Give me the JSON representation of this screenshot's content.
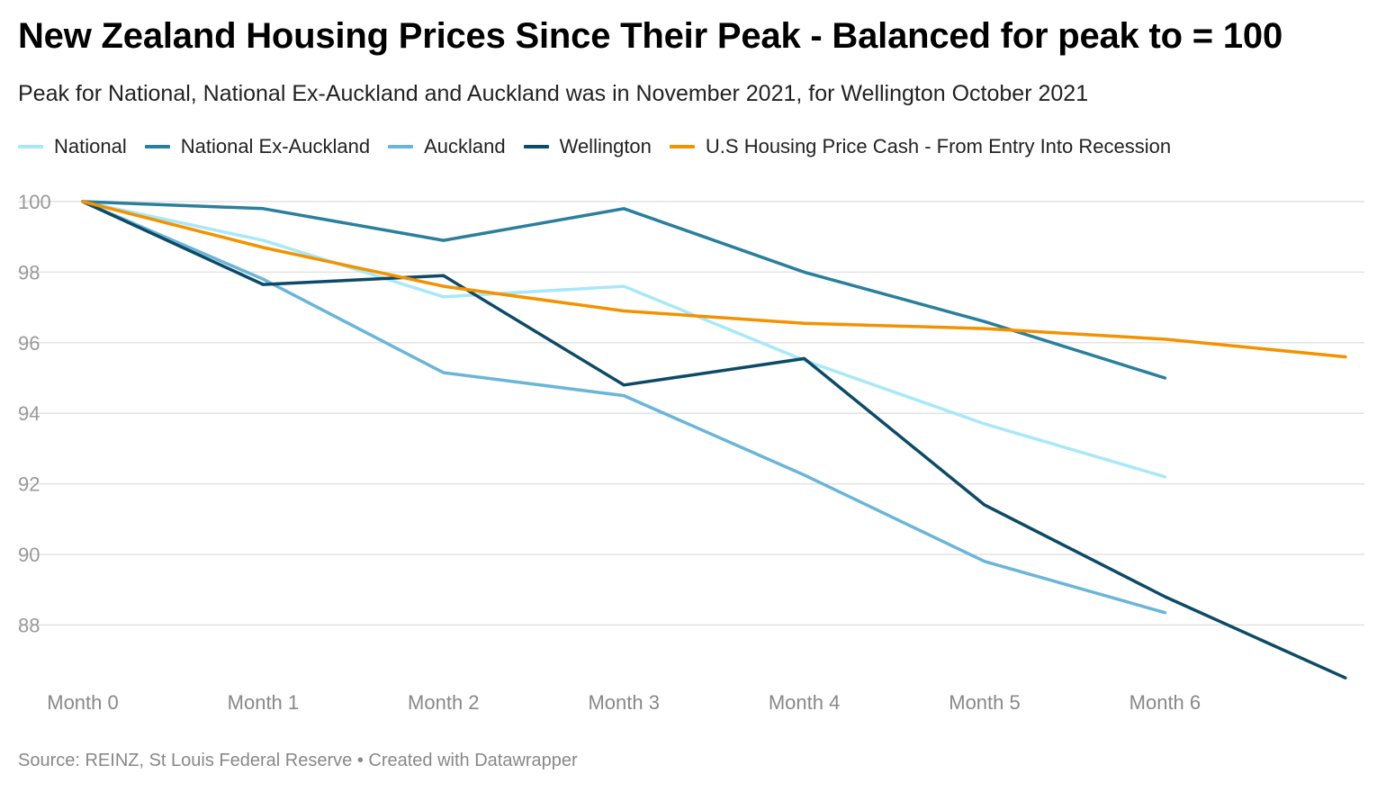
{
  "chart_data": {
    "type": "line",
    "title": "New Zealand Housing Prices Since Their Peak - Balanced for peak to = 100",
    "subtitle": "Peak for National, National Ex-Auckland and Auckland was in November 2021, for Wellington October 2021",
    "x": [
      "Month 0",
      "Month 1",
      "Month 2",
      "Month 3",
      "Month 4",
      "Month 5",
      "Month 6",
      ""
    ],
    "ylim": [
      86.5,
      100
    ],
    "yticks": [
      100,
      98,
      96,
      94,
      92,
      90,
      88
    ],
    "grid": true,
    "legend_position": "top",
    "series": [
      {
        "name": "National",
        "color": "#a8e8f8",
        "values": [
          100,
          98.9,
          97.3,
          97.6,
          95.5,
          93.7,
          92.2,
          null
        ]
      },
      {
        "name": "National Ex-Auckland",
        "color": "#2a7f9c",
        "values": [
          100,
          99.8,
          98.9,
          99.8,
          98.0,
          96.6,
          95.0,
          null
        ]
      },
      {
        "name": "Auckland",
        "color": "#6ab5d8",
        "values": [
          100,
          97.8,
          95.15,
          94.5,
          92.25,
          89.8,
          88.35,
          null
        ]
      },
      {
        "name": "Wellington",
        "color": "#0d4a65",
        "values": [
          100,
          97.65,
          97.9,
          94.8,
          95.55,
          91.4,
          88.8,
          86.5
        ]
      },
      {
        "name": "U.S Housing Price Cash - From Entry Into Recession",
        "color": "#f39200",
        "values": [
          100,
          98.7,
          97.6,
          96.9,
          96.55,
          96.4,
          96.1,
          95.6
        ]
      }
    ]
  },
  "footer": {
    "source": "Source: REINZ, St Louis Federal Reserve • Created with Datawrapper"
  }
}
